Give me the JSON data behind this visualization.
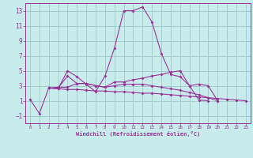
{
  "xlabel": "Windchill (Refroidissement éolien,°C)",
  "background_color": "#c8ecec",
  "grid_color": "#a0c8c8",
  "line_color": "#993399",
  "xlim": [
    -0.5,
    23.5
  ],
  "ylim": [
    -2,
    14
  ],
  "yticks": [
    -1,
    1,
    3,
    5,
    7,
    9,
    11,
    13
  ],
  "xticks": [
    0,
    1,
    2,
    3,
    4,
    5,
    6,
    7,
    8,
    9,
    10,
    11,
    12,
    13,
    14,
    15,
    16,
    17,
    18,
    19,
    20,
    21,
    22,
    23
  ],
  "series": [
    {
      "x": [
        0,
        1,
        2,
        3,
        4,
        5,
        6,
        7,
        8,
        9,
        10,
        11,
        12,
        13,
        14,
        15,
        16,
        17,
        18,
        19
      ],
      "y": [
        1.2,
        -0.7,
        2.7,
        2.6,
        5.0,
        4.2,
        3.2,
        2.2,
        4.3,
        8.0,
        13.0,
        13.0,
        13.5,
        11.5,
        7.3,
        4.5,
        4.2,
        3.0,
        1.1,
        1.0
      ]
    },
    {
      "x": [
        2,
        3,
        4,
        5,
        6,
        7,
        8,
        9,
        10,
        11,
        12,
        13,
        14,
        15,
        16,
        17,
        18,
        19,
        20
      ],
      "y": [
        2.7,
        2.7,
        4.3,
        3.3,
        3.3,
        3.0,
        2.8,
        3.5,
        3.5,
        3.8,
        4.0,
        4.3,
        4.5,
        4.8,
        5.0,
        3.0,
        3.2,
        3.0,
        1.0
      ]
    },
    {
      "x": [
        2,
        3,
        4,
        5,
        6,
        7,
        8,
        9,
        10,
        11,
        12,
        13,
        14,
        15,
        16,
        17,
        18,
        19,
        20
      ],
      "y": [
        2.7,
        2.8,
        2.8,
        3.3,
        3.3,
        3.0,
        2.8,
        3.0,
        3.2,
        3.2,
        3.2,
        3.0,
        2.8,
        2.6,
        2.4,
        2.1,
        1.8,
        1.4,
        1.0
      ]
    },
    {
      "x": [
        2,
        3,
        4,
        5,
        6,
        7,
        8,
        9,
        10,
        11,
        12,
        13,
        14,
        15,
        16,
        17,
        18,
        19,
        20,
        21,
        22,
        23
      ],
      "y": [
        2.7,
        2.6,
        2.5,
        2.5,
        2.4,
        2.3,
        2.3,
        2.2,
        2.2,
        2.1,
        2.0,
        2.0,
        1.9,
        1.8,
        1.7,
        1.6,
        1.5,
        1.4,
        1.3,
        1.2,
        1.1,
        1.0
      ]
    }
  ]
}
